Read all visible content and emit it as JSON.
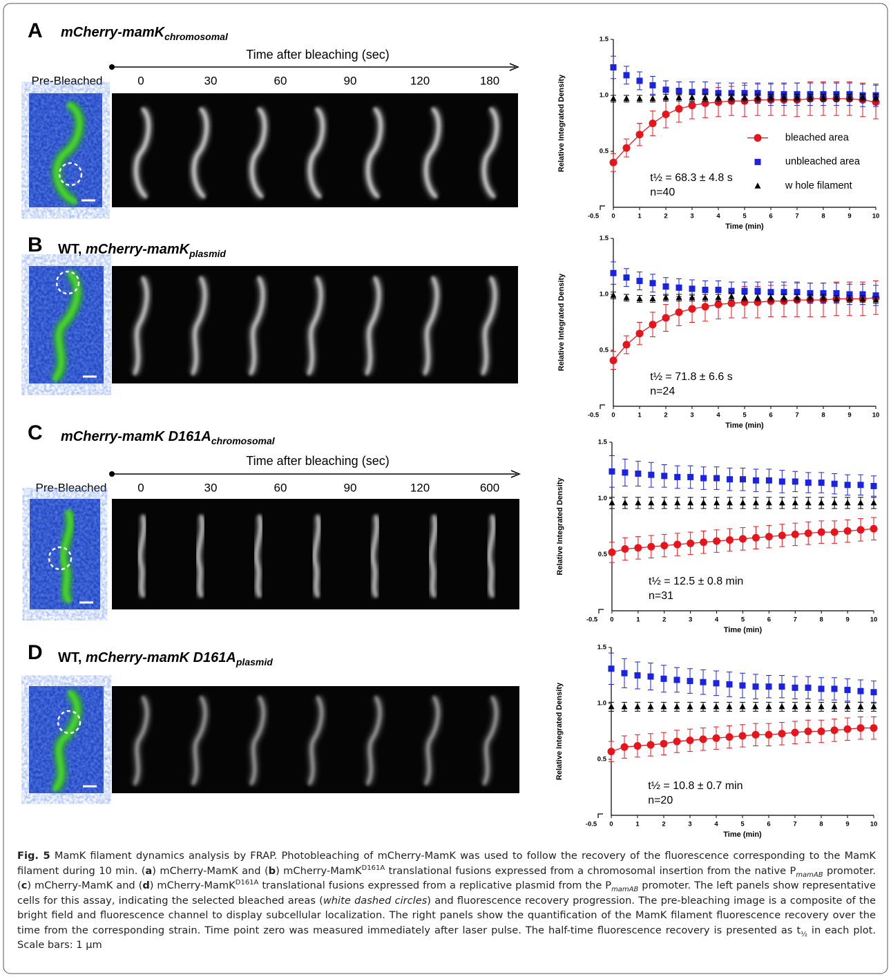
{
  "panels": [
    {
      "label": "A",
      "title": {
        "main": "mCherry-mamK",
        "sub": "chromosomal"
      },
      "header": {
        "axis_label": "Time after bleaching (sec)",
        "pre": "Pre-Bleached",
        "times": [
          "0",
          "30",
          "60",
          "90",
          "120",
          "180"
        ]
      }
    },
    {
      "label": "B",
      "title": {
        "prefix": "WT, ",
        "main": "mCherry-mamK",
        "sub": "plasmid"
      }
    },
    {
      "label": "C",
      "title": {
        "main": "mCherry-mamK D161A",
        "sub": "chromosomal"
      },
      "header": {
        "axis_label": "Time after bleaching (sec)",
        "pre": "Pre-Bleached",
        "times": [
          "0",
          "30",
          "60",
          "90",
          "120",
          "600"
        ]
      }
    },
    {
      "label": "D",
      "title": {
        "prefix": "WT, ",
        "main": "mCherry-mamK D161A",
        "sub": "plasmid"
      }
    }
  ],
  "chart_data": [
    {
      "type": "scatter",
      "x_label": "Time (min)",
      "y_label": "Relative Integrated Density",
      "xlim": [
        -0.5,
        10
      ],
      "xticks": [
        -0.5,
        0,
        1,
        2,
        3,
        4,
        5,
        6,
        7,
        8,
        9,
        10
      ],
      "ylim": [
        0,
        1.5
      ],
      "yticks": [
        0.5,
        {
          "value": 1,
          "label": "1.0"
        },
        1.5
      ],
      "x": [
        0,
        0.5,
        1,
        1.5,
        2,
        2.5,
        3,
        3.5,
        4,
        4.5,
        5,
        5.5,
        6,
        6.5,
        7,
        7.5,
        8,
        8.5,
        9,
        9.5,
        10
      ],
      "annotations": [
        "t½ = 68.3 ± 4.8 s",
        "n=40"
      ],
      "series": [
        {
          "name": "bleached area",
          "color": "#e8141b",
          "marker": "circle",
          "line": true,
          "values": [
            0.4,
            0.53,
            0.65,
            0.75,
            0.83,
            0.88,
            0.91,
            0.93,
            0.94,
            0.95,
            0.95,
            0.96,
            0.96,
            0.96,
            0.96,
            0.97,
            0.97,
            0.97,
            0.97,
            0.96,
            0.94
          ],
          "errors": [
            0.08,
            0.08,
            0.1,
            0.11,
            0.12,
            0.12,
            0.12,
            0.13,
            0.13,
            0.13,
            0.14,
            0.14,
            0.14,
            0.14,
            0.15,
            0.15,
            0.15,
            0.15,
            0.15,
            0.15,
            0.15
          ]
        },
        {
          "name": "unbleached area",
          "color": "#1a23e0",
          "marker": "square",
          "values": [
            1.25,
            1.18,
            1.13,
            1.09,
            1.05,
            1.04,
            1.03,
            1.03,
            1.02,
            1.02,
            1.02,
            1.02,
            1.01,
            1.01,
            1.01,
            1.01,
            1.01,
            1.01,
            1.01,
            1.0,
            1.0
          ],
          "errors": [
            0.1,
            0.08,
            0.08,
            0.08,
            0.08,
            0.08,
            0.09,
            0.09,
            0.09,
            0.09,
            0.09,
            0.09,
            0.1,
            0.1,
            0.1,
            0.1,
            0.1,
            0.1,
            0.1,
            0.1,
            0.1
          ]
        },
        {
          "name": "w hole filament",
          "color": "#000000",
          "marker": "triangle",
          "values": [
            0.97,
            0.97,
            0.97,
            0.97,
            0.98,
            0.98,
            0.98,
            0.98,
            0.98,
            0.98,
            0.98,
            0.98,
            0.98,
            0.98,
            0.98,
            0.98,
            0.98,
            0.98,
            0.98,
            0.98,
            0.98
          ],
          "errors": [
            0.03,
            0.03,
            0.03,
            0.03,
            0.03,
            0.03,
            0.03,
            0.03,
            0.03,
            0.03,
            0.03,
            0.03,
            0.03,
            0.03,
            0.03,
            0.03,
            0.03,
            0.03,
            0.03,
            0.03,
            0.03
          ]
        }
      ]
    },
    {
      "type": "scatter",
      "x_label": "Time (min)",
      "y_label": "Relative Integrated Density",
      "xlim": [
        -0.5,
        10
      ],
      "xticks": [
        -0.5,
        0,
        1,
        2,
        3,
        4,
        5,
        6,
        7,
        8,
        9,
        10
      ],
      "ylim": [
        0,
        1.5
      ],
      "yticks": [
        0.5,
        {
          "value": 1,
          "label": "1.0"
        },
        1.5
      ],
      "x": [
        0,
        0.5,
        1,
        1.5,
        2,
        2.5,
        3,
        3.5,
        4,
        4.5,
        5,
        5.5,
        6,
        6.5,
        7,
        7.5,
        8,
        8.5,
        9,
        9.5,
        10
      ],
      "annotations": [
        "t½ = 71.8 ± 6.6 s",
        "n=24"
      ],
      "series": [
        {
          "color": "#e8141b",
          "marker": "circle",
          "line": true,
          "values": [
            0.41,
            0.55,
            0.65,
            0.73,
            0.79,
            0.84,
            0.87,
            0.89,
            0.91,
            0.92,
            0.93,
            0.93,
            0.94,
            0.94,
            0.95,
            0.95,
            0.95,
            0.96,
            0.96,
            0.96,
            0.97
          ],
          "errors": [
            0.08,
            0.08,
            0.1,
            0.11,
            0.12,
            0.12,
            0.12,
            0.13,
            0.13,
            0.13,
            0.14,
            0.14,
            0.14,
            0.14,
            0.15,
            0.15,
            0.15,
            0.15,
            0.15,
            0.15,
            0.15
          ]
        },
        {
          "color": "#1a23e0",
          "marker": "square",
          "values": [
            1.19,
            1.15,
            1.12,
            1.1,
            1.07,
            1.06,
            1.05,
            1.04,
            1.04,
            1.03,
            1.03,
            1.03,
            1.02,
            1.02,
            1.02,
            1.01,
            1.01,
            1.01,
            1.0,
            1.0,
            0.99
          ],
          "errors": [
            0.1,
            0.08,
            0.08,
            0.08,
            0.08,
            0.08,
            0.08,
            0.08,
            0.08,
            0.08,
            0.08,
            0.08,
            0.09,
            0.09,
            0.09,
            0.09,
            0.09,
            0.09,
            0.09,
            0.09,
            0.09
          ]
        },
        {
          "color": "#000000",
          "marker": "triangle",
          "values": [
            0.99,
            0.97,
            0.96,
            0.96,
            0.97,
            0.97,
            0.97,
            0.97,
            0.97,
            0.98,
            0.97,
            0.97,
            0.97,
            0.97,
            0.97,
            0.97,
            0.97,
            0.96,
            0.96,
            0.96,
            0.95
          ],
          "errors": [
            0.03,
            0.03,
            0.03,
            0.03,
            0.03,
            0.03,
            0.03,
            0.03,
            0.03,
            0.03,
            0.03,
            0.03,
            0.03,
            0.03,
            0.03,
            0.03,
            0.03,
            0.03,
            0.03,
            0.03,
            0.03
          ]
        }
      ]
    },
    {
      "type": "scatter",
      "x_label": "Time (min)",
      "y_label": "Relative Integrated Density",
      "xlim": [
        -0.5,
        10
      ],
      "xticks": [
        -0.5,
        0,
        1,
        2,
        3,
        4,
        5,
        6,
        7,
        8,
        9,
        10
      ],
      "ylim": [
        0,
        1.5
      ],
      "yticks": [
        0.5,
        {
          "value": 1,
          "label": "1.0"
        },
        1.5
      ],
      "x": [
        0,
        0.5,
        1,
        1.5,
        2,
        2.5,
        3,
        3.5,
        4,
        4.5,
        5,
        5.5,
        6,
        6.5,
        7,
        7.5,
        8,
        8.5,
        9,
        9.5,
        10
      ],
      "annotations": [
        "t½ = 12.5 ± 0.8 min",
        "n=31"
      ],
      "series": [
        {
          "color": "#e8141b",
          "marker": "circle",
          "line": true,
          "values": [
            0.52,
            0.55,
            0.56,
            0.57,
            0.58,
            0.59,
            0.6,
            0.61,
            0.62,
            0.63,
            0.64,
            0.65,
            0.66,
            0.67,
            0.68,
            0.69,
            0.7,
            0.7,
            0.71,
            0.72,
            0.73
          ],
          "errors": [
            0.09,
            0.1,
            0.1,
            0.1,
            0.1,
            0.1,
            0.1,
            0.1,
            0.1,
            0.1,
            0.1,
            0.1,
            0.1,
            0.1,
            0.1,
            0.1,
            0.1,
            0.1,
            0.1,
            0.1,
            0.1
          ]
        },
        {
          "color": "#1a23e0",
          "marker": "square",
          "values": [
            1.24,
            1.23,
            1.22,
            1.21,
            1.2,
            1.19,
            1.19,
            1.18,
            1.18,
            1.17,
            1.17,
            1.16,
            1.16,
            1.15,
            1.15,
            1.14,
            1.14,
            1.13,
            1.12,
            1.12,
            1.11
          ],
          "errors": [
            0.14,
            0.12,
            0.11,
            0.11,
            0.1,
            0.1,
            0.1,
            0.1,
            0.1,
            0.1,
            0.1,
            0.1,
            0.1,
            0.1,
            0.09,
            0.09,
            0.09,
            0.09,
            0.09,
            0.09,
            0.09
          ]
        },
        {
          "color": "#000000",
          "marker": "triangle",
          "values": [
            0.96,
            0.96,
            0.96,
            0.96,
            0.96,
            0.96,
            0.96,
            0.96,
            0.96,
            0.96,
            0.96,
            0.96,
            0.96,
            0.96,
            0.96,
            0.96,
            0.96,
            0.96,
            0.96,
            0.96,
            0.96
          ],
          "errors": [
            0.05,
            0.05,
            0.05,
            0.05,
            0.05,
            0.05,
            0.05,
            0.05,
            0.05,
            0.05,
            0.05,
            0.05,
            0.05,
            0.05,
            0.05,
            0.05,
            0.05,
            0.05,
            0.05,
            0.05,
            0.05
          ]
        }
      ]
    },
    {
      "type": "scatter",
      "x_label": "Time (min)",
      "y_label": "Relative Integrated Density",
      "xlim": [
        -0.5,
        10
      ],
      "xticks": [
        -0.5,
        0,
        1,
        2,
        3,
        4,
        5,
        6,
        7,
        8,
        9,
        10
      ],
      "ylim": [
        0,
        1.5
      ],
      "yticks": [
        0.5,
        {
          "value": 1,
          "label": "1.0"
        },
        1.5
      ],
      "x": [
        0,
        0.5,
        1,
        1.5,
        2,
        2.5,
        3,
        3.5,
        4,
        4.5,
        5,
        5.5,
        6,
        6.5,
        7,
        7.5,
        8,
        8.5,
        9,
        9.5,
        10
      ],
      "annotations": [
        "t½ = 10.8 ± 0.7 min",
        "n=20"
      ],
      "series": [
        {
          "color": "#e8141b",
          "marker": "circle",
          "line": true,
          "values": [
            0.57,
            0.61,
            0.62,
            0.63,
            0.64,
            0.66,
            0.67,
            0.68,
            0.69,
            0.7,
            0.71,
            0.72,
            0.72,
            0.73,
            0.74,
            0.75,
            0.75,
            0.76,
            0.77,
            0.78,
            0.78
          ],
          "errors": [
            0.09,
            0.1,
            0.1,
            0.1,
            0.1,
            0.1,
            0.1,
            0.1,
            0.1,
            0.1,
            0.1,
            0.1,
            0.1,
            0.1,
            0.1,
            0.1,
            0.1,
            0.1,
            0.1,
            0.1,
            0.1
          ]
        },
        {
          "color": "#1a23e0",
          "marker": "square",
          "values": [
            1.31,
            1.27,
            1.25,
            1.24,
            1.22,
            1.21,
            1.2,
            1.19,
            1.18,
            1.17,
            1.16,
            1.15,
            1.15,
            1.15,
            1.14,
            1.14,
            1.13,
            1.13,
            1.12,
            1.11,
            1.1
          ],
          "errors": [
            0.14,
            0.13,
            0.12,
            0.12,
            0.12,
            0.11,
            0.11,
            0.11,
            0.11,
            0.11,
            0.11,
            0.11,
            0.1,
            0.1,
            0.1,
            0.1,
            0.1,
            0.1,
            0.1,
            0.1,
            0.1
          ]
        },
        {
          "color": "#000000",
          "marker": "triangle",
          "values": [
            0.97,
            0.97,
            0.97,
            0.97,
            0.97,
            0.97,
            0.97,
            0.97,
            0.97,
            0.97,
            0.97,
            0.97,
            0.97,
            0.97,
            0.97,
            0.97,
            0.97,
            0.97,
            0.97,
            0.97,
            0.97
          ],
          "errors": [
            0.04,
            0.04,
            0.04,
            0.04,
            0.04,
            0.04,
            0.04,
            0.04,
            0.04,
            0.04,
            0.04,
            0.04,
            0.04,
            0.04,
            0.04,
            0.04,
            0.04,
            0.04,
            0.04,
            0.04,
            0.04
          ]
        }
      ]
    }
  ],
  "caption": {
    "segments": [
      "Fig. 5",
      " MamK filament dynamics analysis by FRAP. Photobleaching of mCherry-MamK was used to follow the recovery of the fluorescence corresponding to the MamK filament during 10 min. (",
      "a",
      ") mCherry-MamK and (",
      "b",
      ") mCherry-MamK",
      "D161A",
      " translational fusions expressed from a chromosomal insertion from the native P",
      "mamAB",
      " promoter. (",
      "c",
      ") mCherry-MamK and (",
      "d",
      ") mCherry-MamK",
      "D161A",
      " translational fusions expressed from a replicative plasmid from the P",
      "mamAB",
      " promoter. The left panels show representative cells for this assay, indicating the selected bleached areas (",
      "white dashed circles",
      ") and fluorescence recovery progression. The pre-bleaching image is a composite of the bright field and fluorescence channel to display subcellular localization. The right panels show the quantification of the MamK filament fluorescence recovery over the time from the corresponding strain. Time point zero was measured immediately after laser pulse. The half-time fluorescence recovery is presented as t",
      "½",
      " in each plot. Scale bars: 1 μm"
    ]
  }
}
